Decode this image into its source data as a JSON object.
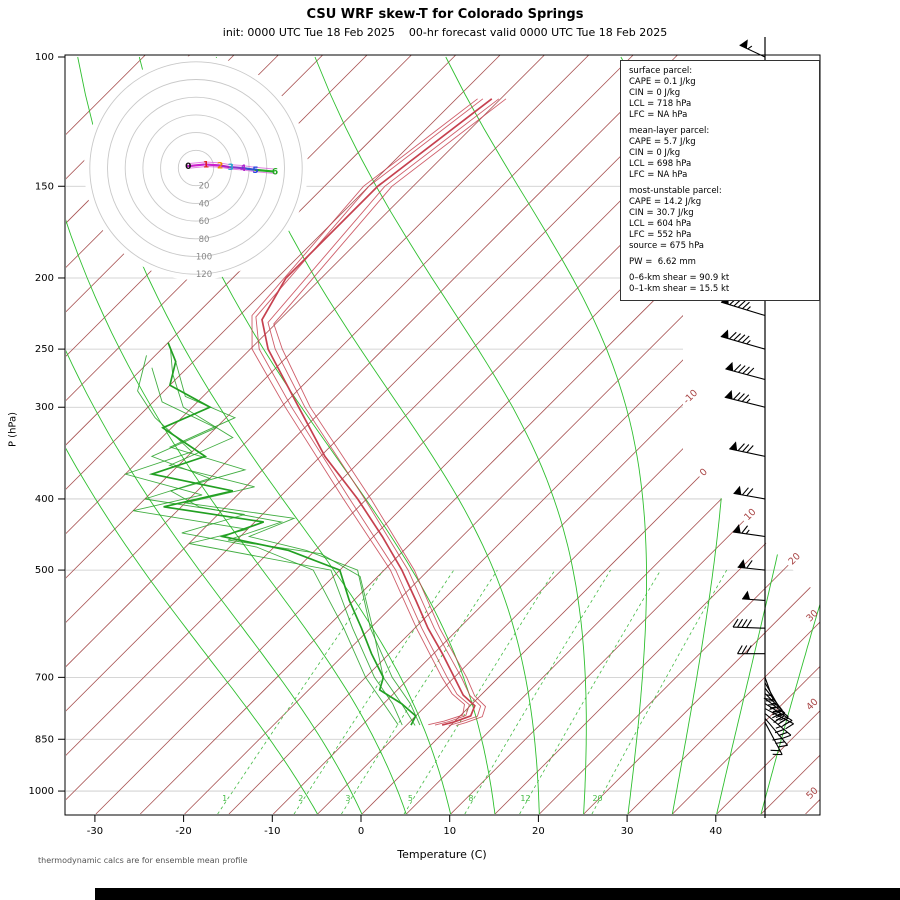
{
  "header": {
    "title": "CSU WRF skew-T for Colorado Springs",
    "subtitle": "init: 0000 UTC Tue 18 Feb 2025    00-hr forecast valid 0000 UTC Tue 18 Feb 2025"
  },
  "axes": {
    "x_label": "Temperature (C)",
    "y_label": "P (hPa)",
    "pressure_ticks": [
      100,
      150,
      200,
      250,
      300,
      400,
      500,
      700,
      850,
      1000
    ],
    "temp_ticks": [
      -30,
      -20,
      -10,
      0,
      10,
      20,
      30,
      40
    ],
    "isotherm_labels": [
      -10,
      0,
      10,
      20,
      30,
      40,
      50
    ]
  },
  "parcel_info": {
    "sections": [
      {
        "title": "surface parcel:",
        "lines": [
          "CAPE = 0.1 J/kg",
          "CIN = 0 J/kg",
          "LCL = 718 hPa",
          "LFC = NA hPa"
        ]
      },
      {
        "title": "mean-layer parcel:",
        "lines": [
          "CAPE = 5.7 J/kg",
          "CIN = 0 J/kg",
          "LCL = 698 hPa",
          "LFC = NA hPa"
        ]
      },
      {
        "title": "most-unstable parcel:",
        "lines": [
          "CAPE = 14.2 J/kg",
          "CIN = 30.7 J/kg",
          "LCL = 604 hPa",
          "LFC = 552 hPa",
          "source = 675 hPa"
        ]
      }
    ],
    "extra_lines": [
      "PW =  6.62 mm",
      "",
      "0–6-km shear = 90.9 kt",
      "0–1-km shear = 15.5 kt"
    ]
  },
  "footer": {
    "note": "thermodynamic calcs are for ensemble mean profile"
  },
  "hodograph": {
    "ring_step_kt": 20,
    "ring_labels": [
      20,
      40,
      60,
      80,
      100,
      120
    ],
    "trace_km_points": [
      {
        "km": 0,
        "u": -10,
        "v": 2
      },
      {
        "km": 1,
        "u": 10,
        "v": 4
      },
      {
        "km": 2,
        "u": 26,
        "v": 3
      },
      {
        "km": 3,
        "u": 38,
        "v": 1
      },
      {
        "km": 4,
        "u": 52,
        "v": 0
      },
      {
        "km": 5,
        "u": 66,
        "v": -2
      },
      {
        "km": 6,
        "u": 88,
        "v": -4
      }
    ],
    "segment_colors": [
      "#cc22cc",
      "#cc22cc",
      "#b020c0",
      "#8833cc",
      "#3355cc",
      "#22aa22"
    ],
    "digit_colors": [
      "#111111",
      "#dd2222",
      "#ee8800",
      "#22aacc",
      "#aa22cc",
      "#2244dd",
      "#22aa22"
    ]
  },
  "chart_data": {
    "type": "line",
    "chart_variant": "skew-T log-p sounding",
    "background": {
      "isotherm_range_c": [
        -110,
        50
      ],
      "isotherm_step_c": 5,
      "moist_adiabat_start_temps_c": [
        -5,
        0,
        5,
        10,
        15,
        20,
        25,
        30,
        35,
        40,
        45
      ],
      "mixing_ratio_g_kg": [
        1,
        2,
        3,
        5,
        8,
        12,
        20
      ],
      "pressure_gridlines_hpa": [
        150,
        200,
        250,
        300,
        400,
        500,
        700,
        850,
        1000
      ]
    },
    "temperature_profile_mean": [
      [
        813,
        -1.0
      ],
      [
        805,
        0.0
      ],
      [
        790,
        1.2
      ],
      [
        765,
        0.5
      ],
      [
        740,
        -2.0
      ],
      [
        700,
        -5.0
      ],
      [
        650,
        -9.0
      ],
      [
        600,
        -13.5
      ],
      [
        550,
        -18.0
      ],
      [
        500,
        -23.0
      ],
      [
        450,
        -29.0
      ],
      [
        400,
        -36.0
      ],
      [
        350,
        -44.5
      ],
      [
        300,
        -53.0
      ],
      [
        250,
        -63.0
      ],
      [
        228,
        -67.0
      ],
      [
        200,
        -69.0
      ],
      [
        150,
        -69.0
      ],
      [
        114,
        -66.0
      ]
    ],
    "temperature_profile_members": [
      [
        [
          813,
          -1.8
        ],
        [
          804,
          -0.6
        ],
        [
          789,
          0.6
        ],
        [
          763,
          -0.2
        ],
        [
          738,
          -2.8
        ],
        [
          700,
          -5.8
        ],
        [
          600,
          -14.2
        ],
        [
          500,
          -23.7
        ],
        [
          400,
          -36.9
        ],
        [
          300,
          -53.8
        ],
        [
          250,
          -64.0
        ],
        [
          226,
          -68.0
        ],
        [
          150,
          -70.0
        ],
        [
          114,
          -67.0
        ]
      ],
      [
        [
          814,
          -0.2
        ],
        [
          806,
          0.7
        ],
        [
          791,
          2.0
        ],
        [
          766,
          1.2
        ],
        [
          741,
          -1.2
        ],
        [
          700,
          -4.2
        ],
        [
          600,
          -12.8
        ],
        [
          500,
          -22.3
        ],
        [
          400,
          -35.2
        ],
        [
          300,
          -52.3
        ],
        [
          250,
          -62.2
        ],
        [
          230,
          -66.0
        ],
        [
          150,
          -68.2
        ],
        [
          114,
          -65.2
        ]
      ],
      [
        [
          812,
          -2.6
        ],
        [
          803,
          -1.2
        ],
        [
          788,
          0.2
        ],
        [
          762,
          -0.8
        ],
        [
          737,
          -3.4
        ],
        [
          700,
          -6.4
        ],
        [
          600,
          -14.8
        ],
        [
          500,
          -24.3
        ],
        [
          400,
          -37.6
        ],
        [
          300,
          -54.5
        ],
        [
          250,
          -64.8
        ],
        [
          225,
          -68.6
        ],
        [
          150,
          -70.6
        ],
        [
          114,
          -67.6
        ]
      ],
      [
        [
          814,
          0.6
        ],
        [
          807,
          1.4
        ],
        [
          792,
          2.6
        ],
        [
          767,
          1.8
        ],
        [
          742,
          -0.6
        ],
        [
          700,
          -3.6
        ],
        [
          600,
          -12.2
        ],
        [
          500,
          -21.6
        ],
        [
          400,
          -34.5
        ],
        [
          300,
          -51.7
        ],
        [
          250,
          -61.4
        ],
        [
          231,
          -65.2
        ],
        [
          150,
          -67.4
        ],
        [
          114,
          -64.4
        ]
      ]
    ],
    "dewpoint_profile_mean": [
      [
        813,
        -4.5
      ],
      [
        790,
        -5.0
      ],
      [
        760,
        -8.0
      ],
      [
        728,
        -12.0
      ],
      [
        700,
        -13.0
      ],
      [
        650,
        -17.0
      ],
      [
        600,
        -21.0
      ],
      [
        550,
        -25.5
      ],
      [
        500,
        -30.0
      ],
      [
        470,
        -38.0
      ],
      [
        450,
        -47.0
      ],
      [
        430,
        -44.0
      ],
      [
        410,
        -57.0
      ],
      [
        390,
        -51.0
      ],
      [
        370,
        -62.0
      ],
      [
        350,
        -58.0
      ],
      [
        320,
        -66.0
      ],
      [
        300,
        -63.0
      ],
      [
        280,
        -70.0
      ],
      [
        260,
        -72.0
      ],
      [
        245,
        -75.0
      ]
    ],
    "dewpoint_profile_members": [
      [
        [
          813,
          -5.5
        ],
        [
          760,
          -9.0
        ],
        [
          700,
          -14.0
        ],
        [
          600,
          -22.0
        ],
        [
          500,
          -31.0
        ],
        [
          460,
          -50.0
        ],
        [
          440,
          -45.0
        ],
        [
          415,
          -60.0
        ],
        [
          395,
          -54.0
        ],
        [
          370,
          -65.0
        ],
        [
          345,
          -60.0
        ],
        [
          310,
          -68.0
        ],
        [
          285,
          -73.0
        ],
        [
          255,
          -76.0
        ]
      ],
      [
        [
          813,
          -3.5
        ],
        [
          760,
          -7.0
        ],
        [
          700,
          -12.0
        ],
        [
          600,
          -20.0
        ],
        [
          500,
          -28.0
        ],
        [
          470,
          -36.0
        ],
        [
          450,
          -44.0
        ],
        [
          425,
          -41.0
        ],
        [
          405,
          -55.0
        ],
        [
          385,
          -49.0
        ],
        [
          360,
          -61.0
        ],
        [
          330,
          -57.0
        ],
        [
          300,
          -66.0
        ],
        [
          270,
          -71.0
        ],
        [
          250,
          -74.0
        ]
      ],
      [
        [
          812,
          -6.0
        ],
        [
          760,
          -10.0
        ],
        [
          700,
          -15.0
        ],
        [
          600,
          -23.0
        ],
        [
          500,
          -33.0
        ],
        [
          465,
          -42.0
        ],
        [
          445,
          -52.0
        ],
        [
          420,
          -47.0
        ],
        [
          400,
          -60.0
        ],
        [
          375,
          -55.0
        ],
        [
          350,
          -64.0
        ],
        [
          320,
          -60.0
        ],
        [
          295,
          -69.0
        ],
        [
          265,
          -74.0
        ]
      ],
      [
        [
          814,
          -4.0
        ],
        [
          760,
          -8.0
        ],
        [
          700,
          -13.0
        ],
        [
          610,
          -19.0
        ],
        [
          510,
          -27.0
        ],
        [
          475,
          -34.0
        ],
        [
          455,
          -46.0
        ],
        [
          430,
          -42.0
        ],
        [
          410,
          -53.0
        ],
        [
          390,
          -58.0
        ],
        [
          365,
          -52.0
        ],
        [
          340,
          -63.0
        ],
        [
          310,
          -59.0
        ],
        [
          290,
          -67.0
        ],
        [
          260,
          -72.0
        ]
      ]
    ],
    "wind_profile": [
      {
        "p": 100,
        "dir": 295,
        "spd": 55
      },
      {
        "p": 125,
        "dir": 293,
        "spd": 60
      },
      {
        "p": 150,
        "dir": 292,
        "spd": 70
      },
      {
        "p": 175,
        "dir": 290,
        "spd": 80
      },
      {
        "p": 200,
        "dir": 288,
        "spd": 90
      },
      {
        "p": 225,
        "dir": 287,
        "spd": 95
      },
      {
        "p": 250,
        "dir": 286,
        "spd": 95
      },
      {
        "p": 275,
        "dir": 285,
        "spd": 90
      },
      {
        "p": 300,
        "dir": 284,
        "spd": 85
      },
      {
        "p": 350,
        "dir": 282,
        "spd": 80
      },
      {
        "p": 400,
        "dir": 280,
        "spd": 70
      },
      {
        "p": 450,
        "dir": 278,
        "spd": 65
      },
      {
        "p": 500,
        "dir": 276,
        "spd": 60
      },
      {
        "p": 550,
        "dir": 274,
        "spd": 50
      },
      {
        "p": 600,
        "dir": 272,
        "spd": 40
      },
      {
        "p": 650,
        "dir": 270,
        "spd": 30
      }
    ],
    "low_level_wind_members": [
      {
        "p": 700,
        "dir": 160,
        "spd": 15
      },
      {
        "p": 712,
        "dir": 150,
        "spd": 20
      },
      {
        "p": 724,
        "dir": 142,
        "spd": 25
      },
      {
        "p": 736,
        "dir": 135,
        "spd": 28
      },
      {
        "p": 748,
        "dir": 128,
        "spd": 32
      },
      {
        "p": 760,
        "dir": 122,
        "spd": 38
      },
      {
        "p": 772,
        "dir": 118,
        "spd": 42
      },
      {
        "p": 784,
        "dir": 130,
        "spd": 35
      },
      {
        "p": 796,
        "dir": 140,
        "spd": 28
      },
      {
        "p": 806,
        "dir": 152,
        "spd": 22
      }
    ],
    "colors": {
      "isotherm": "#a85252",
      "moist_adiabat": "#2fbf2f",
      "mixing_ratio": "#44bb44",
      "gridline": "#c8c8c8",
      "temperature": "#c6414f",
      "dewpoint": "#22a022",
      "isotherm_label": "#a84444",
      "wind_barb": "#000000"
    }
  }
}
